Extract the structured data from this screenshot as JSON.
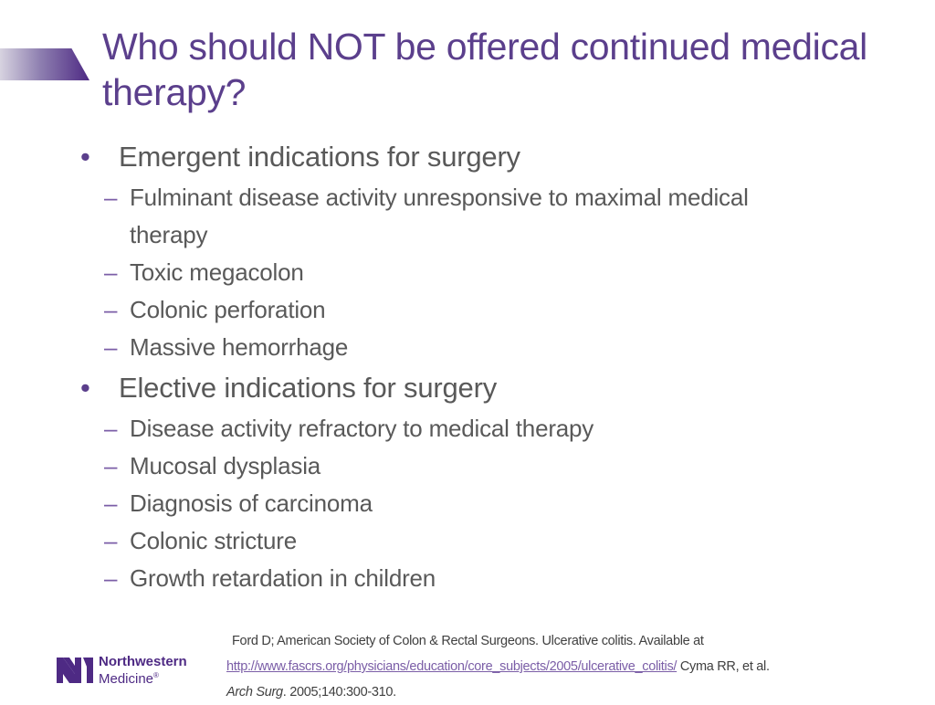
{
  "slide": {
    "title": "Who should NOT be offered continued medical therapy?",
    "sections": [
      {
        "heading": "Emergent indications for surgery",
        "items": [
          "Fulminant disease activity unresponsive to maximal medical therapy",
          "Toxic megacolon",
          "Colonic perforation",
          "Massive hemorrhage"
        ]
      },
      {
        "heading": "Elective indications for surgery",
        "items": [
          "Disease activity refractory to medical therapy",
          "Mucosal dysplasia",
          "Diagnosis of carcinoma",
          "Colonic stricture",
          "Growth retardation in children"
        ]
      }
    ],
    "bullet_glyph": "•",
    "dash_glyph": "–"
  },
  "reference": {
    "line1": "Ford D; American Society of Colon & Rectal Surgeons. Ulcerative colitis. Available at",
    "link": "http://www.fascrs.org/physicians/education/core_subjects/2005/ulcerative_colitis/",
    "after_link": " Cyma RR, et al.",
    "journal": "Arch Surg",
    "citation": ". 2005;140:300-310."
  },
  "logo": {
    "line1": "Northwestern",
    "line2": "Medicine",
    "mark": "®",
    "color": "#4e2a84"
  },
  "colors": {
    "title": "#5b3f8c",
    "body": "#595959",
    "accent": "#4e2a84"
  }
}
